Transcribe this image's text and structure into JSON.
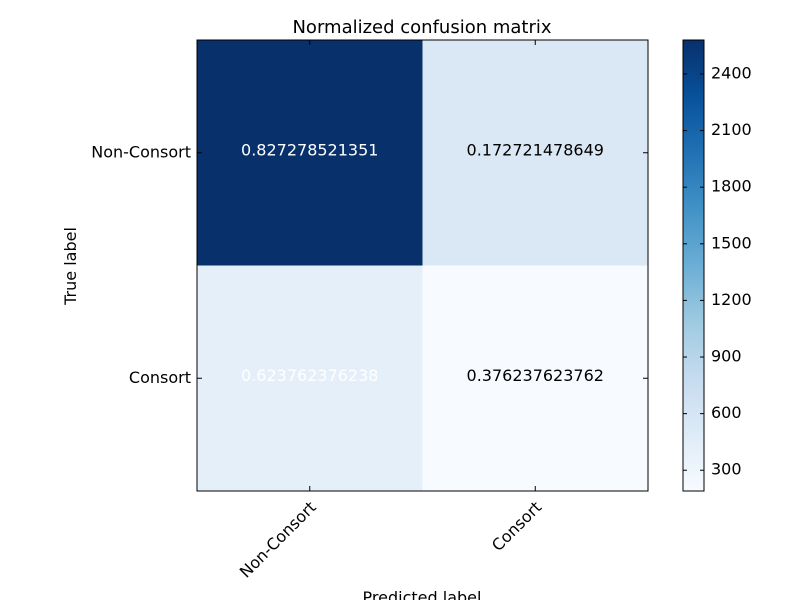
{
  "chart_data": {
    "type": "heatmap",
    "title": "Normalized confusion matrix",
    "xlabel": "Predicted label",
    "ylabel": "True label",
    "x_categories": [
      "Non-Consort",
      "Consort"
    ],
    "y_categories": [
      "Non-Consort",
      "Consort"
    ],
    "cells": [
      {
        "row": 0,
        "col": 0,
        "label": "0.827278521351",
        "color_value": 2580
      },
      {
        "row": 0,
        "col": 1,
        "label": "0.172721478649",
        "color_value": 540
      },
      {
        "row": 1,
        "col": 0,
        "label": "0.623762376238",
        "color_value": 420
      },
      {
        "row": 1,
        "col": 1,
        "label": "0.376237623762",
        "color_value": 190
      }
    ],
    "colormap": "Blues",
    "colorbar": {
      "range": [
        190,
        2580
      ],
      "ticks": [
        300,
        600,
        900,
        1200,
        1500,
        1800,
        2100,
        2400
      ]
    },
    "colors": {
      "low": "#f7fbff",
      "high": "#08306b"
    }
  }
}
